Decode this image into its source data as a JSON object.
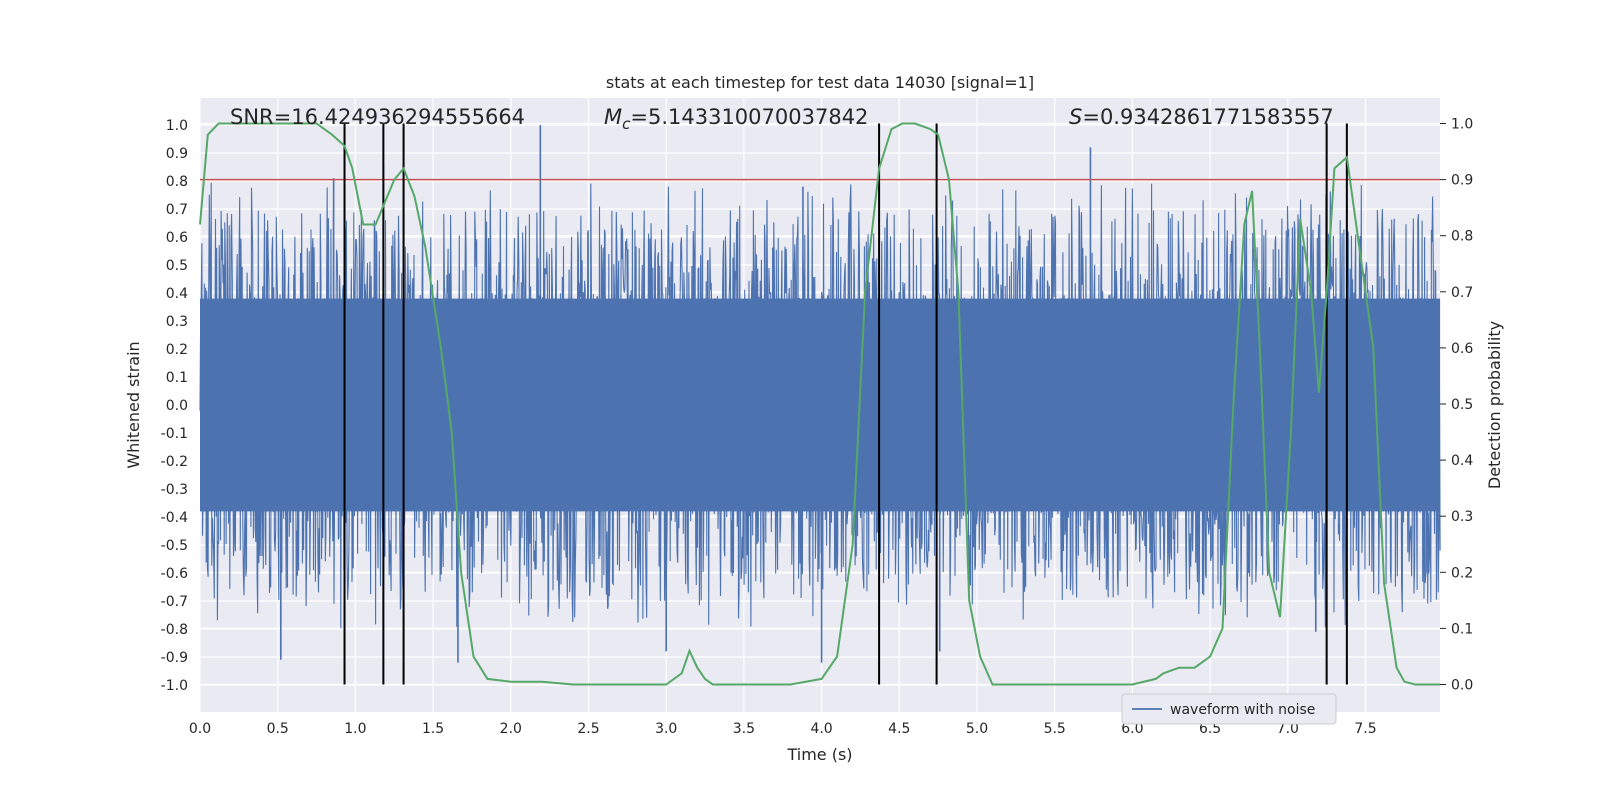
{
  "chart_data": {
    "type": "line",
    "title": "stats at each timestep for test data 14030 [signal=1]",
    "xlabel": "Time (s)",
    "ylabel_left": "Whitened strain",
    "ylabel_right": "Detection probability",
    "xlim": [
      0.0,
      7.98
    ],
    "ylim_left": [
      -1.1,
      1.05
    ],
    "ylim_right": [
      -0.05,
      1.03
    ],
    "x_ticks": [
      0.0,
      0.5,
      1.0,
      1.5,
      2.0,
      2.5,
      3.0,
      3.5,
      4.0,
      4.5,
      5.0,
      5.5,
      6.0,
      6.5,
      7.0,
      7.5
    ],
    "x_tick_labels": [
      "0.0",
      "0.5",
      "1.0",
      "1.5",
      "2.0",
      "2.5",
      "3.0",
      "3.5",
      "4.0",
      "4.5",
      "5.0",
      "5.5",
      "6.0",
      "6.5",
      "7.0",
      "7.5"
    ],
    "y_left_ticks": [
      1.0,
      0.9,
      0.8,
      0.7,
      0.6,
      0.5,
      0.4,
      0.3,
      0.2,
      0.1,
      0.0,
      -0.1,
      -0.2,
      -0.3,
      -0.4,
      -0.5,
      -0.6,
      -0.7,
      -0.8,
      -0.9,
      -1.0
    ],
    "y_left_tick_labels": [
      "1.0",
      "0.9",
      "0.8",
      "0.7",
      "0.6",
      "0.5",
      "0.4",
      "0.3",
      "0.2",
      "0.1",
      "0.0",
      "-0.1",
      "-0.2",
      "-0.3",
      "-0.4",
      "-0.5",
      "-0.6",
      "-0.7",
      "-0.8",
      "-0.9",
      "-1.0"
    ],
    "y_right_ticks": [
      1.0,
      0.9,
      0.8,
      0.7,
      0.6,
      0.5,
      0.4,
      0.3,
      0.2,
      0.1,
      0.0
    ],
    "y_right_tick_labels": [
      "1.0",
      "0.9",
      "0.8",
      "0.7",
      "0.6",
      "0.5",
      "0.4",
      "0.3",
      "0.2",
      "0.1",
      "0.0"
    ],
    "annotations": {
      "snr": "SNR=16.424936294555664",
      "mc_symbol": "M",
      "mc_sub": "c",
      "mc_value": "=5.143310070037842",
      "s_symbol": "S",
      "s_value": "=0.9342861771583557"
    },
    "threshold": {
      "value": 0.9,
      "axis": "right",
      "color": "#c44e52"
    },
    "event_lines": {
      "x": [
        0.93,
        1.18,
        1.31,
        4.37,
        4.74,
        7.25,
        7.38
      ],
      "ymin": 0.0,
      "ymax": 1.0,
      "color": "#000000"
    },
    "series": [
      {
        "name": "waveform with noise",
        "axis": "left",
        "color": "#4c72b0",
        "style": "noisy-strain",
        "seed": 14030,
        "sample_count": 2000,
        "x_range": [
          0.0,
          7.98
        ],
        "core_amplitude": 0.4,
        "peak_range": [
          -0.92,
          1.0
        ],
        "bursts": [
          {
            "x": 0.86,
            "value": 0.81
          },
          {
            "x": 1.18,
            "value": 0.86
          },
          {
            "x": 1.31,
            "value": 0.88
          },
          {
            "x": 2.19,
            "value": 1.0
          },
          {
            "x": 3.88,
            "value": 0.78
          },
          {
            "x": 5.73,
            "value": 0.92
          },
          {
            "x": 0.52,
            "value": -0.91
          },
          {
            "x": 1.66,
            "value": -0.92
          },
          {
            "x": 4.0,
            "value": -0.92
          },
          {
            "x": 4.76,
            "value": -0.88
          },
          {
            "x": 3.0,
            "value": -0.88
          },
          {
            "x": 7.18,
            "value": -0.81
          }
        ]
      },
      {
        "name": "detection probability",
        "axis": "right",
        "color": "#55a868",
        "x": [
          0.0,
          0.05,
          0.12,
          0.2,
          0.4,
          0.6,
          0.75,
          0.85,
          0.93,
          0.98,
          1.05,
          1.13,
          1.25,
          1.31,
          1.38,
          1.45,
          1.55,
          1.62,
          1.68,
          1.76,
          1.85,
          2.0,
          2.2,
          2.4,
          2.6,
          2.8,
          3.0,
          3.1,
          3.15,
          3.2,
          3.25,
          3.3,
          3.4,
          3.5,
          3.6,
          3.8,
          4.0,
          4.1,
          4.2,
          4.28,
          4.37,
          4.45,
          4.52,
          4.6,
          4.7,
          4.75,
          4.82,
          4.88,
          4.95,
          5.02,
          5.1,
          5.3,
          5.6,
          6.0,
          6.15,
          6.2,
          6.3,
          6.4,
          6.5,
          6.58,
          6.65,
          6.72,
          6.77,
          6.82,
          6.88,
          6.95,
          7.02,
          7.08,
          7.15,
          7.2,
          7.25,
          7.3,
          7.38,
          7.45,
          7.55,
          7.62,
          7.7,
          7.75,
          7.82,
          7.98
        ],
        "values": [
          0.82,
          0.98,
          1.0,
          1.0,
          1.0,
          1.0,
          1.0,
          0.98,
          0.96,
          0.92,
          0.82,
          0.82,
          0.9,
          0.92,
          0.87,
          0.78,
          0.6,
          0.45,
          0.2,
          0.05,
          0.01,
          0.005,
          0.005,
          0.0,
          0.0,
          0.0,
          0.0,
          0.02,
          0.06,
          0.03,
          0.01,
          0.0,
          0.0,
          0.0,
          0.0,
          0.0,
          0.01,
          0.05,
          0.25,
          0.7,
          0.92,
          0.99,
          1.0,
          1.0,
          0.99,
          0.98,
          0.9,
          0.7,
          0.15,
          0.05,
          0.0,
          0.0,
          0.0,
          0.0,
          0.01,
          0.02,
          0.03,
          0.03,
          0.05,
          0.1,
          0.5,
          0.82,
          0.88,
          0.6,
          0.2,
          0.12,
          0.45,
          0.83,
          0.7,
          0.52,
          0.7,
          0.92,
          0.94,
          0.8,
          0.6,
          0.18,
          0.03,
          0.005,
          0.0,
          0.0
        ]
      }
    ],
    "legend": {
      "position": "lower-right",
      "label": "waveform with noise"
    }
  }
}
